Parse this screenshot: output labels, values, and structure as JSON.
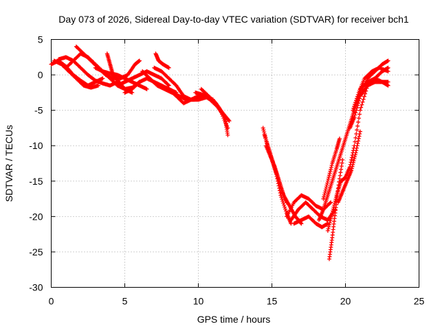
{
  "chart_data": {
    "type": "scatter",
    "title": "Day 073 of 2026, Sidereal Day-to-day VTEC variation (SDTVAR) for receiver bch1",
    "xlabel": "GPS time / hours",
    "ylabel": "SDTVAR / TECUs",
    "xlim": [
      0,
      25
    ],
    "ylim": [
      -30,
      5
    ],
    "xticks": [
      "0",
      "5",
      "10",
      "15",
      "20",
      "25"
    ],
    "yticks": [
      "5",
      "0",
      "-5",
      "-10",
      "-15",
      "-20",
      "-25",
      "-30"
    ],
    "xtick_values": [
      0,
      5,
      10,
      15,
      20,
      25
    ],
    "ytick_values": [
      5,
      0,
      -5,
      -10,
      -15,
      -20,
      -25,
      -30
    ],
    "grid": true,
    "marker": "+",
    "color": "#ff0000",
    "series": [
      {
        "name": "bch1",
        "tracks": [
          [
            [
              0.0,
              1.5
            ],
            [
              0.5,
              2.0
            ],
            [
              1.0,
              1.2
            ],
            [
              1.5,
              0.0
            ],
            [
              2.0,
              -0.8
            ],
            [
              2.5,
              -1.5
            ],
            [
              3.0,
              -1.0
            ],
            [
              3.5,
              -0.5
            ]
          ],
          [
            [
              0.2,
              2.0
            ],
            [
              0.7,
              1.5
            ],
            [
              1.2,
              0.5
            ],
            [
              1.7,
              -0.5
            ],
            [
              2.2,
              -1.5
            ],
            [
              2.7,
              -1.8
            ],
            [
              3.2,
              -1.5
            ]
          ],
          [
            [
              0.5,
              2.2
            ],
            [
              1.0,
              2.5
            ],
            [
              1.5,
              2.0
            ],
            [
              2.0,
              1.0
            ],
            [
              2.5,
              0.0
            ],
            [
              3.0,
              -0.8
            ],
            [
              3.5,
              -1.2
            ],
            [
              4.0,
              -1.5
            ],
            [
              4.5,
              -1.0
            ]
          ],
          [
            [
              1.0,
              1.0
            ],
            [
              1.5,
              2.0
            ],
            [
              2.0,
              3.0
            ],
            [
              2.5,
              2.5
            ],
            [
              3.0,
              1.5
            ],
            [
              3.5,
              0.5
            ],
            [
              4.0,
              -0.5
            ],
            [
              4.5,
              -1.5
            ],
            [
              5.0,
              -2.0
            ],
            [
              5.5,
              -2.5
            ]
          ],
          [
            [
              1.7,
              4.0
            ],
            [
              2.2,
              3.0
            ],
            [
              2.7,
              2.0
            ],
            [
              3.2,
              1.0
            ],
            [
              3.7,
              0.0
            ],
            [
              4.2,
              -0.5
            ],
            [
              4.7,
              -0.5
            ],
            [
              5.2,
              0.0
            ],
            [
              5.7,
              1.5
            ],
            [
              6.0,
              2.0
            ]
          ],
          [
            [
              3.0,
              1.0
            ],
            [
              3.5,
              0.5
            ],
            [
              4.0,
              0.2
            ],
            [
              4.5,
              0.0
            ],
            [
              5.0,
              -0.5
            ],
            [
              5.5,
              -1.0
            ],
            [
              6.0,
              -1.5
            ],
            [
              6.5,
              -2.0
            ]
          ],
          [
            [
              3.8,
              3.0
            ],
            [
              4.0,
              1.5
            ],
            [
              4.2,
              0.0
            ],
            [
              4.6,
              -1.0
            ],
            [
              5.0,
              -2.0
            ],
            [
              5.5,
              -1.8
            ],
            [
              6.0,
              -1.0
            ]
          ],
          [
            [
              4.5,
              -1.5
            ],
            [
              5.0,
              -1.0
            ],
            [
              5.5,
              -0.5
            ],
            [
              6.0,
              0.0
            ],
            [
              6.5,
              0.5
            ],
            [
              7.0,
              0.0
            ],
            [
              7.5,
              -0.5
            ],
            [
              8.0,
              -1.5
            ]
          ],
          [
            [
              5.0,
              -2.5
            ],
            [
              5.5,
              -2.0
            ],
            [
              6.0,
              -1.0
            ],
            [
              6.5,
              -0.5
            ],
            [
              7.0,
              -1.0
            ],
            [
              7.5,
              -1.5
            ],
            [
              8.0,
              -2.0
            ],
            [
              8.5,
              -2.5
            ]
          ],
          [
            [
              6.2,
              0.5
            ],
            [
              6.7,
              -0.5
            ],
            [
              7.2,
              -1.5
            ],
            [
              7.7,
              -2.0
            ],
            [
              8.2,
              -2.5
            ],
            [
              8.7,
              -3.0
            ],
            [
              9.2,
              -3.5
            ],
            [
              9.7,
              -3.5
            ],
            [
              10.2,
              -3.0
            ]
          ],
          [
            [
              7.1,
              3.0
            ],
            [
              7.3,
              2.0
            ],
            [
              7.6,
              1.5
            ],
            [
              8.0,
              1.0
            ]
          ],
          [
            [
              7.0,
              1.0
            ],
            [
              7.5,
              0.5
            ],
            [
              8.0,
              -0.5
            ],
            [
              8.5,
              -1.5
            ],
            [
              9.0,
              -3.0
            ],
            [
              9.5,
              -3.5
            ],
            [
              10.0,
              -3.5
            ],
            [
              10.5,
              -3.2
            ]
          ],
          [
            [
              8.0,
              -2.0
            ],
            [
              8.5,
              -3.0
            ],
            [
              9.0,
              -4.0
            ],
            [
              9.5,
              -3.5
            ],
            [
              10.0,
              -3.0
            ],
            [
              10.5,
              -3.0
            ],
            [
              11.0,
              -3.5
            ],
            [
              11.5,
              -5.0
            ],
            [
              12.0,
              -7.5
            ]
          ],
          [
            [
              9.8,
              -2.5
            ],
            [
              10.3,
              -2.8
            ],
            [
              10.8,
              -3.5
            ],
            [
              11.3,
              -4.5
            ],
            [
              11.8,
              -6.0
            ],
            [
              12.0,
              -8.5
            ]
          ],
          [
            [
              10.2,
              -2.0
            ],
            [
              10.7,
              -3.0
            ],
            [
              11.2,
              -4.0
            ],
            [
              11.7,
              -5.5
            ],
            [
              12.1,
              -6.5
            ]
          ],
          [
            [
              14.4,
              -7.5
            ],
            [
              14.7,
              -10.0
            ],
            [
              15.0,
              -12.0
            ],
            [
              15.3,
              -14.0
            ],
            [
              15.6,
              -17.0
            ],
            [
              16.0,
              -19.5
            ],
            [
              16.3,
              -21.0
            ]
          ],
          [
            [
              14.6,
              -10.0
            ],
            [
              14.9,
              -11.5
            ],
            [
              15.2,
              -13.0
            ],
            [
              15.5,
              -15.0
            ],
            [
              15.8,
              -17.0
            ],
            [
              16.2,
              -18.5
            ],
            [
              16.6,
              -20.0
            ],
            [
              17.0,
              -21.0
            ]
          ],
          [
            [
              14.5,
              -8.5
            ],
            [
              14.8,
              -10.5
            ],
            [
              15.1,
              -12.5
            ],
            [
              15.4,
              -14.5
            ],
            [
              15.7,
              -16.5
            ],
            [
              16.0,
              -18.0
            ]
          ],
          [
            [
              16.0,
              -20.0
            ],
            [
              16.5,
              -18.0
            ],
            [
              17.0,
              -17.0
            ],
            [
              17.5,
              -17.5
            ],
            [
              18.0,
              -18.5
            ],
            [
              18.5,
              -19.0
            ],
            [
              19.0,
              -18.0
            ]
          ],
          [
            [
              16.3,
              -20.5
            ],
            [
              16.8,
              -19.0
            ],
            [
              17.3,
              -18.0
            ],
            [
              17.8,
              -19.0
            ],
            [
              18.3,
              -20.0
            ],
            [
              18.8,
              -20.5
            ],
            [
              19.3,
              -19.0
            ]
          ],
          [
            [
              16.5,
              -21.0
            ],
            [
              17.0,
              -20.5
            ],
            [
              17.5,
              -20.0
            ],
            [
              18.0,
              -21.0
            ],
            [
              18.4,
              -21.5
            ],
            [
              18.8,
              -21.0
            ]
          ],
          [
            [
              18.2,
              -20.5
            ],
            [
              18.5,
              -19.0
            ],
            [
              18.8,
              -17.0
            ],
            [
              19.1,
              -15.0
            ],
            [
              19.4,
              -13.0
            ],
            [
              19.7,
              -11.0
            ],
            [
              20.0,
              -9.0
            ],
            [
              20.3,
              -7.0
            ],
            [
              20.6,
              -5.0
            ],
            [
              21.0,
              -2.5
            ],
            [
              21.5,
              -0.5
            ],
            [
              22.0,
              0.5
            ],
            [
              22.5,
              1.5
            ],
            [
              22.9,
              2.0
            ]
          ],
          [
            [
              18.9,
              -26.0
            ],
            [
              19.1,
              -23.0
            ],
            [
              19.3,
              -19.5
            ],
            [
              19.5,
              -16.0
            ],
            [
              19.8,
              -12.0
            ]
          ],
          [
            [
              18.5,
              -17.5
            ],
            [
              18.8,
              -15.0
            ],
            [
              19.1,
              -12.5
            ],
            [
              19.4,
              -10.5
            ],
            [
              19.6,
              -9.0
            ]
          ],
          [
            [
              18.8,
              -22.0
            ],
            [
              19.1,
              -19.5
            ],
            [
              19.4,
              -17.0
            ],
            [
              19.7,
              -15.0
            ],
            [
              20.0,
              -14.5
            ],
            [
              20.3,
              -13.0
            ],
            [
              20.6,
              -10.0
            ],
            [
              21.0,
              -5.0
            ],
            [
              21.5,
              -1.5
            ],
            [
              22.0,
              -0.5
            ],
            [
              22.5,
              0.5
            ],
            [
              22.9,
              1.0
            ]
          ],
          [
            [
              19.5,
              -18.0
            ],
            [
              19.8,
              -16.5
            ],
            [
              20.1,
              -15.0
            ],
            [
              20.4,
              -13.5
            ],
            [
              20.7,
              -11.0
            ],
            [
              21.0,
              -8.0
            ]
          ],
          [
            [
              20.3,
              -7.5
            ],
            [
              20.6,
              -6.0
            ],
            [
              21.0,
              -3.0
            ],
            [
              21.5,
              -1.5
            ],
            [
              22.0,
              -1.0
            ],
            [
              22.5,
              -1.0
            ],
            [
              22.9,
              -1.5
            ]
          ],
          [
            [
              20.5,
              -5.0
            ],
            [
              20.9,
              -2.5
            ],
            [
              21.3,
              -0.5
            ],
            [
              21.8,
              0.5
            ],
            [
              22.3,
              1.0
            ],
            [
              22.9,
              0.5
            ]
          ],
          [
            [
              21.0,
              -2.0
            ],
            [
              21.5,
              -1.0
            ],
            [
              22.0,
              -0.5
            ],
            [
              22.5,
              -1.0
            ],
            [
              22.9,
              -1.0
            ]
          ]
        ]
      }
    ]
  }
}
